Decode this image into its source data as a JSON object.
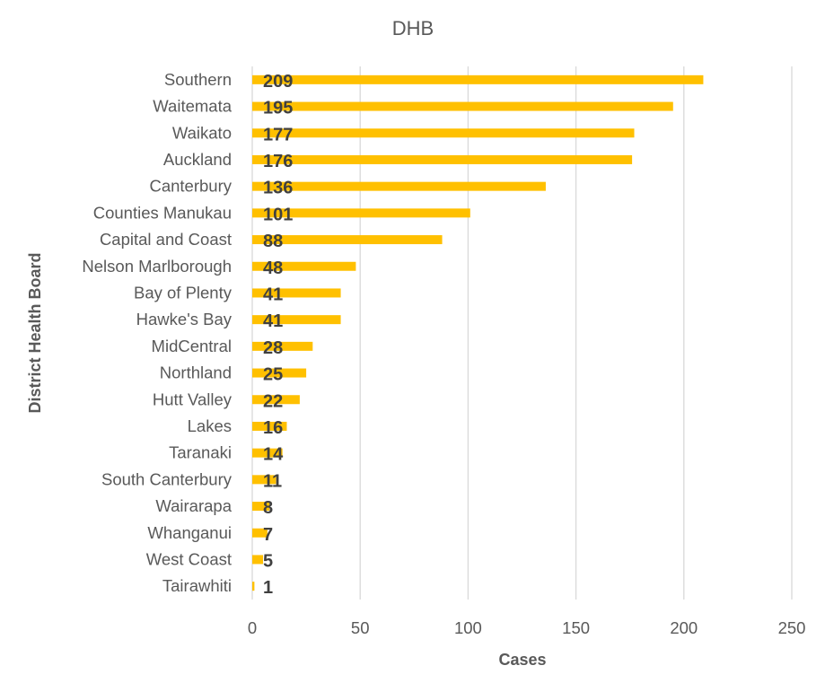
{
  "chart_data": {
    "type": "bar",
    "orientation": "horizontal",
    "title": "DHB",
    "xlabel": "Cases",
    "ylabel": "District Health Board",
    "xlim": [
      0,
      250
    ],
    "xticks": [
      0,
      50,
      100,
      150,
      200,
      250
    ],
    "grid": true,
    "legend": "none",
    "bar_color": "#FFC000",
    "categories": [
      "Southern",
      "Waitemata",
      "Waikato",
      "Auckland",
      "Canterbury",
      "Counties Manukau",
      "Capital and Coast",
      "Nelson Marlborough",
      "Bay of Plenty",
      "Hawke's Bay",
      "MidCentral",
      "Northland",
      "Hutt Valley",
      "Lakes",
      "Taranaki",
      "South Canterbury",
      "Wairarapa",
      "Whanganui",
      "West Coast",
      "Tairawhiti"
    ],
    "values": [
      209,
      195,
      177,
      176,
      136,
      101,
      88,
      48,
      41,
      41,
      28,
      25,
      22,
      16,
      14,
      11,
      8,
      7,
      5,
      1
    ]
  }
}
